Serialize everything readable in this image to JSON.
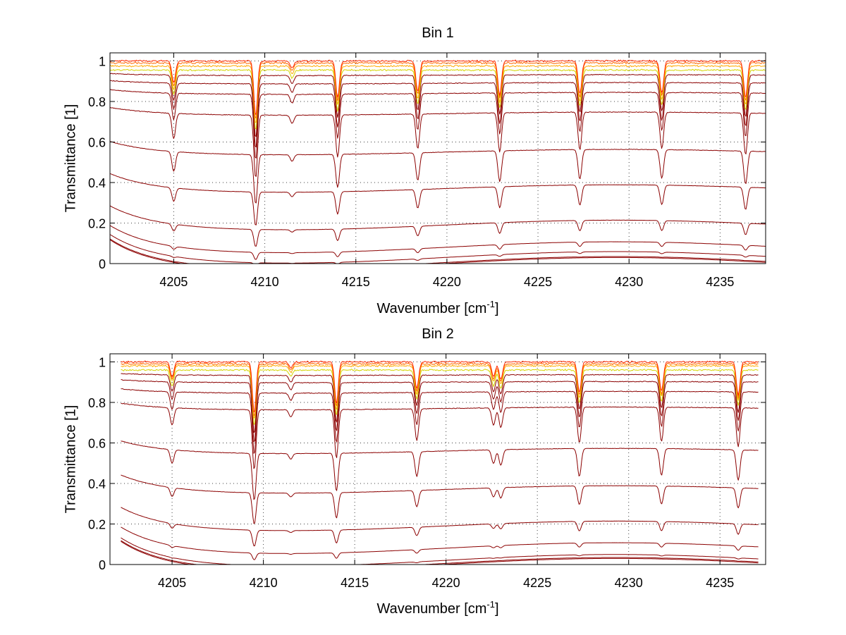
{
  "chart_data": [
    {
      "type": "line",
      "title": "Bin 1",
      "xlabel": "Wavenumber [cm",
      "xlabel_sup": "-1",
      "xlabel_close": "]",
      "ylabel": "Transmittance [1]",
      "xlim": [
        4201.5,
        4237.5
      ],
      "ylim": [
        0,
        1.04
      ],
      "xticks": [
        4205,
        4210,
        4215,
        4220,
        4225,
        4230,
        4235
      ],
      "yticks": [
        0,
        0.2,
        0.4,
        0.6,
        0.8,
        1
      ],
      "ytick_labels": [
        "0",
        "0.2",
        "0.4",
        "0.6",
        "0.8",
        "1"
      ],
      "grid": true,
      "line_color": "#8b0000",
      "top_line_colors": [
        "#ff2a00",
        "#ff6a00",
        "#ffaa00",
        "#d4d400"
      ],
      "absorption_lines": [
        {
          "x": 4205.0,
          "depth": 0.18
        },
        {
          "x": 4209.5,
          "depth": 0.45
        },
        {
          "x": 4211.5,
          "depth": 0.06
        },
        {
          "x": 4214.0,
          "depth": 0.3
        },
        {
          "x": 4218.4,
          "depth": 0.25
        },
        {
          "x": 4222.9,
          "depth": 0.28
        },
        {
          "x": 4227.3,
          "depth": 0.27
        },
        {
          "x": 4231.8,
          "depth": 0.26
        },
        {
          "x": 4236.4,
          "depth": 0.3
        }
      ],
      "series_levels": [
        0.0,
        0.005,
        0.03,
        0.08,
        0.19,
        0.37,
        0.55,
        0.74,
        0.84,
        0.89,
        0.93,
        0.955,
        0.975,
        0.99,
        1.0
      ]
    },
    {
      "type": "line",
      "title": "Bin 2",
      "xlabel": "Wavenumber [cm",
      "xlabel_sup": "-1",
      "xlabel_close": "]",
      "ylabel": "Transmittance [1]",
      "xlim": [
        4201.6,
        4237.5
      ],
      "ylim": [
        0,
        1.04
      ],
      "xticks": [
        4205,
        4210,
        4215,
        4220,
        4225,
        4230,
        4235
      ],
      "yticks": [
        0,
        0.2,
        0.4,
        0.6,
        0.8,
        1
      ],
      "ytick_labels": [
        "0",
        "0.2",
        "0.4",
        "0.6",
        "0.8",
        "1"
      ],
      "grid": true,
      "line_color": "#8b0000",
      "top_line_colors": [
        "#ff2a00",
        "#ff6a00",
        "#ffaa00",
        "#d4d400"
      ],
      "absorption_lines": [
        {
          "x": 4205.0,
          "depth": 0.12
        },
        {
          "x": 4209.5,
          "depth": 0.42
        },
        {
          "x": 4211.5,
          "depth": 0.05
        },
        {
          "x": 4214.0,
          "depth": 0.34
        },
        {
          "x": 4218.4,
          "depth": 0.22
        },
        {
          "x": 4222.6,
          "depth": 0.12
        },
        {
          "x": 4223.0,
          "depth": 0.14
        },
        {
          "x": 4227.3,
          "depth": 0.25
        },
        {
          "x": 4231.8,
          "depth": 0.24
        },
        {
          "x": 4236.0,
          "depth": 0.27
        }
      ],
      "series_levels": [
        0.0,
        0.005,
        0.02,
        0.08,
        0.19,
        0.37,
        0.56,
        0.77,
        0.85,
        0.9,
        0.935,
        0.96,
        0.98,
        0.99,
        1.0
      ]
    }
  ]
}
